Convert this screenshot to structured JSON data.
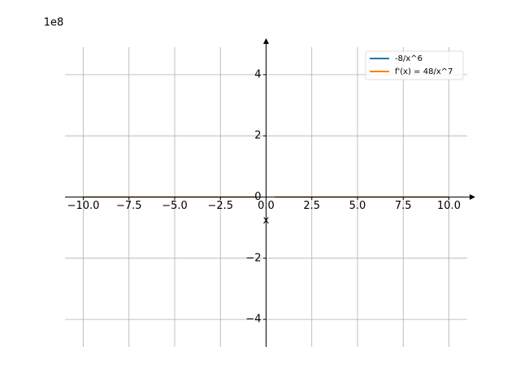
{
  "chart_data": {
    "type": "line",
    "x_label": "x",
    "y_offset_label": "1e8",
    "x": [
      -10,
      -8,
      -6,
      -4,
      -2,
      -1,
      -0.5,
      0,
      0.5,
      1,
      2,
      4,
      6,
      8,
      10
    ],
    "series": [
      {
        "name": "-8/x^6",
        "color": "#1f77b4",
        "values": [
          -8e-06,
          -3.0518e-05,
          -0.00017147,
          -0.0019531,
          -0.125,
          -8,
          -512,
          null,
          -512,
          -8,
          -0.125,
          -0.0019531,
          -0.00017147,
          -3.0518e-05,
          -8e-06
        ]
      },
      {
        "name": "f'(x) = 48/x^7",
        "color": "#ff7f0e",
        "values": [
          -4.8e-06,
          -2.2888e-05,
          -0.00017147,
          -0.0029297,
          -0.375,
          -48,
          -6144,
          null,
          6144,
          48,
          0.375,
          0.0029297,
          0.00017147,
          2.2888e-05,
          4.8e-06
        ]
      }
    ],
    "xlim": [
      -11,
      11
    ],
    "ylim": [
      -490000000,
      490000000
    ],
    "xticks": [
      {
        "value": -10,
        "label": "−10.0"
      },
      {
        "value": -7.5,
        "label": "−7.5"
      },
      {
        "value": -5,
        "label": "−5.0"
      },
      {
        "value": -2.5,
        "label": "−2.5"
      },
      {
        "value": 0,
        "label": "0.0"
      },
      {
        "value": 2.5,
        "label": "2.5"
      },
      {
        "value": 5,
        "label": "5.0"
      },
      {
        "value": 7.5,
        "label": "7.5"
      },
      {
        "value": 10,
        "label": "10.0"
      }
    ],
    "yticks": [
      {
        "value": -400000000,
        "label": "−4"
      },
      {
        "value": -200000000,
        "label": "−2"
      },
      {
        "value": 0,
        "label": "0"
      },
      {
        "value": 200000000,
        "label": "2"
      },
      {
        "value": 400000000,
        "label": "4"
      }
    ],
    "grid": true,
    "legend": "upper right"
  }
}
